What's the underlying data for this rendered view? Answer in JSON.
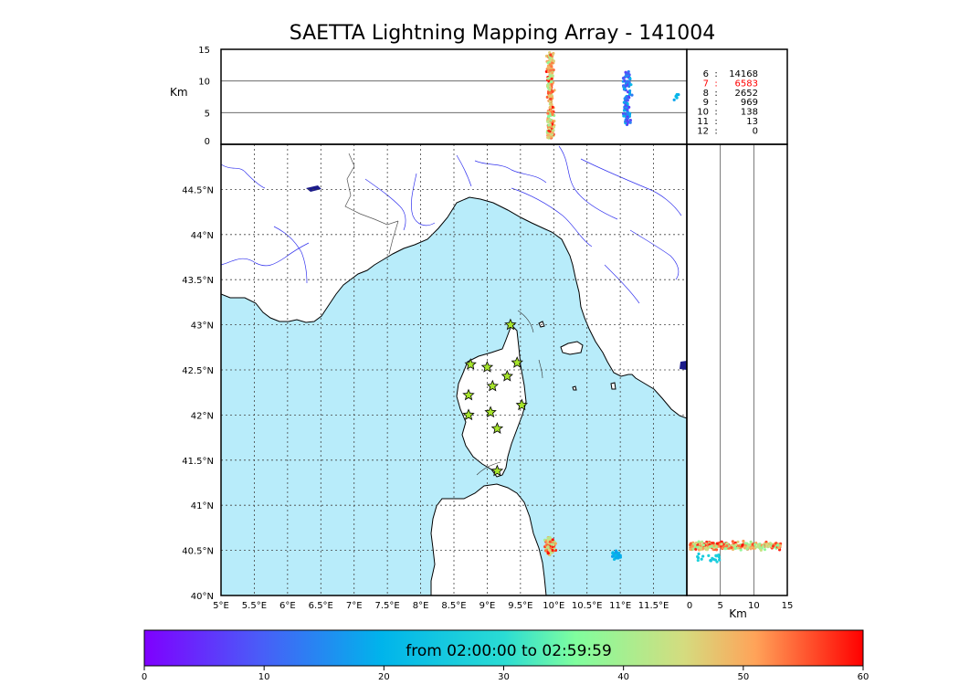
{
  "chart_data": {
    "type": "scatter",
    "title": "SAETTA Lightning Mapping Array - 141004",
    "time_window_label": "from 02:00:00 to 02:59:59",
    "colorbar": {
      "ticks": [
        "0",
        "10",
        "20",
        "30",
        "40",
        "50",
        "60"
      ],
      "min": 0,
      "max": 60
    },
    "map": {
      "xlim": [
        5.0,
        12.0
      ],
      "ylim": [
        40.0,
        45.0
      ],
      "lon_ticks": [
        "5°E",
        "5.5°E",
        "6°E",
        "6.5°E",
        "7°E",
        "7.5°E",
        "8°E",
        "8.5°E",
        "9°E",
        "9.5°E",
        "10°E",
        "10.5°E",
        "11°E",
        "11.5°E"
      ],
      "lat_ticks": [
        "40°N",
        "40.5°N",
        "41°N",
        "41.5°N",
        "42°N",
        "42.5°N",
        "43°N",
        "43.5°N",
        "44°N",
        "44.5°N"
      ],
      "stations": [
        {
          "lon": 9.35,
          "lat": 43.0
        },
        {
          "lon": 8.75,
          "lat": 42.56
        },
        {
          "lon": 9.0,
          "lat": 42.53
        },
        {
          "lon": 9.45,
          "lat": 42.58
        },
        {
          "lon": 9.3,
          "lat": 42.43
        },
        {
          "lon": 9.08,
          "lat": 42.32
        },
        {
          "lon": 8.72,
          "lat": 42.22
        },
        {
          "lon": 9.52,
          "lat": 42.11
        },
        {
          "lon": 9.05,
          "lat": 42.03
        },
        {
          "lon": 8.72,
          "lat": 42.0
        },
        {
          "lon": 9.15,
          "lat": 41.85
        },
        {
          "lon": 9.15,
          "lat": 41.38
        }
      ],
      "clusters": [
        {
          "lon": 9.95,
          "lat": 40.55,
          "dlon": 0.2,
          "dlat": 0.25,
          "n": 140,
          "tmin": 40,
          "tmax": 60
        },
        {
          "lon": 10.95,
          "lat": 40.45,
          "dlon": 0.18,
          "dlat": 0.12,
          "n": 50,
          "tmin": 17,
          "tmax": 22
        }
      ]
    },
    "height_panel": {
      "ylabel": "Km",
      "yticks": [
        "0",
        "5",
        "10",
        "15"
      ],
      "ylim": [
        0,
        15
      ],
      "clusters": [
        {
          "lon": 9.95,
          "alt_min": 1,
          "alt_max": 14.5,
          "n": 260,
          "tmin": 36,
          "tmax": 60
        },
        {
          "lon": 11.1,
          "alt_min": 3,
          "alt_max": 11.5,
          "n": 120,
          "tmin": 5,
          "tmax": 22
        },
        {
          "lon": 11.85,
          "alt_min": 7,
          "alt_max": 8,
          "n": 6,
          "tmin": 18,
          "tmax": 22
        }
      ]
    },
    "side_panel": {
      "xlabel": "Km",
      "xticks": [
        "0",
        "5",
        "10",
        "15"
      ],
      "xlim": [
        0,
        15
      ],
      "clusters": [
        {
          "lat": 40.55,
          "alt_min": 0.5,
          "alt_max": 14,
          "n": 300,
          "tmin": 36,
          "tmax": 60
        },
        {
          "lat": 40.42,
          "alt_min": 1.5,
          "alt_max": 5,
          "n": 20,
          "tmin": 24,
          "tmax": 28
        }
      ]
    },
    "counts": [
      {
        "label": "6",
        "value": "14168",
        "color": "#000000"
      },
      {
        "label": "7",
        "value": "6583",
        "color": "#ff0000"
      },
      {
        "label": "8",
        "value": "2652",
        "color": "#000000"
      },
      {
        "label": "9",
        "value": "969",
        "color": "#000000"
      },
      {
        "label": "10",
        "value": "138",
        "color": "#000000"
      },
      {
        "label": "11",
        "value": "13",
        "color": "#000000"
      },
      {
        "label": "12",
        "value": "0",
        "color": "#000000"
      }
    ],
    "colors": {
      "sea": "#b8ecfa",
      "rivers": "#3333ee",
      "station": "#a6e52b"
    }
  }
}
